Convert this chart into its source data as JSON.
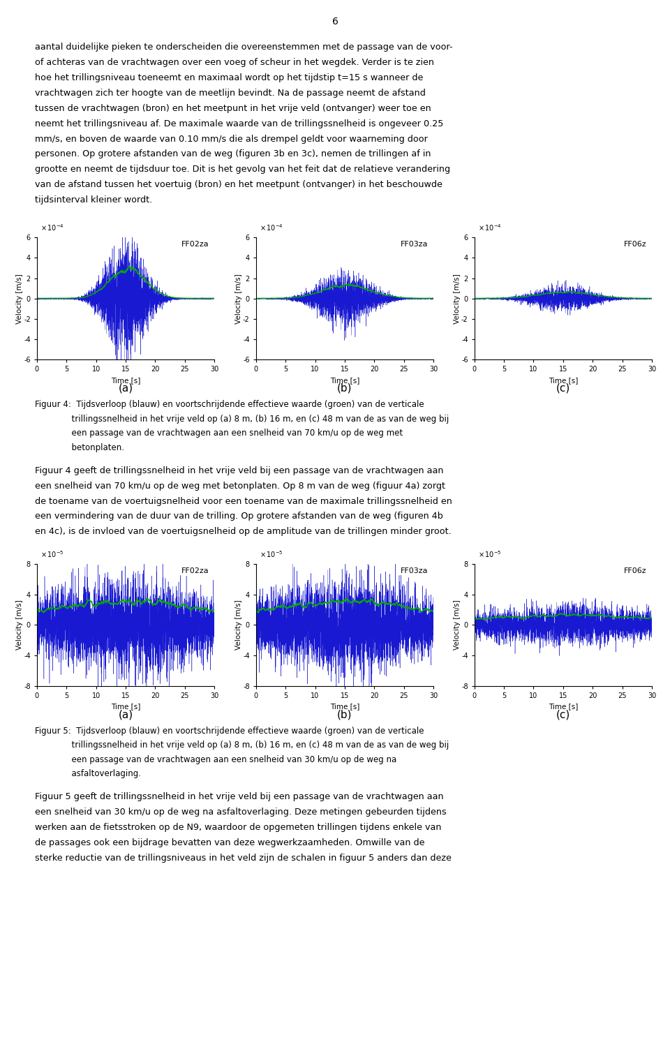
{
  "page_number": "6",
  "background_color": "#ffffff",
  "text_color": "#000000",
  "fig4_labels": [
    "FF02za",
    "FF03za",
    "FF06z"
  ],
  "fig4_sublabels": [
    "(a)",
    "(b)",
    "(c)"
  ],
  "fig5_labels": [
    "FF02za",
    "FF03za",
    "FF06z"
  ],
  "fig5_sublabels": [
    "(a)",
    "(b)",
    "(c)"
  ],
  "plot_xlim": [
    0,
    30
  ],
  "plot_ylim_fig4": [
    -0.0006,
    0.0006
  ],
  "plot_ylim_fig5": [
    -8e-05,
    8e-05
  ],
  "plot_yticks_fig4": [
    -0.0006,
    -0.0004,
    -0.0002,
    0,
    0.0002,
    0.0004,
    0.0006
  ],
  "plot_ytick_labels_fig4": [
    "-6",
    "-4",
    "-2",
    "0",
    "2",
    "4",
    "6"
  ],
  "plot_yticks_fig5": [
    -8e-05,
    -4e-05,
    0,
    4e-05,
    8e-05
  ],
  "plot_ytick_labels_fig5": [
    "-8",
    "-4",
    "0",
    "4",
    "8"
  ],
  "blue_color": "#0000cd",
  "green_color": "#00aa00",
  "para1_lines": [
    "aantal duidelijke pieken te onderscheiden die overeenstemmen met de passage van de voor-",
    "of achteras van de vrachtwagen over een voeg of scheur in het wegdek. Verder is te zien",
    "hoe het trillingsniveau toeneemt en maximaal wordt op het tijdstip t=15 s wanneer de",
    "vrachtwagen zich ter hoogte van de meetlijn bevindt. Na de passage neemt de afstand",
    "tussen de vrachtwagen (bron) en het meetpunt in het vrije veld (ontvanger) weer toe en",
    "neemt het trillingsniveau af. De maximale waarde van de trillingssnelheid is ongeveer 0.25",
    "mm/s, en boven de waarde van 0.10 mm/s die als drempel geldt voor waarneming door",
    "personen. Op grotere afstanden van de weg (figuren 3b en 3c), nemen de trillingen af in",
    "grootte en neemt de tijdsduur toe. Dit is het gevolg van het feit dat de relatieve verandering",
    "van de afstand tussen het voertuig (bron) en het meetpunt (ontvanger) in het beschouwde",
    "tijdsinterval kleiner wordt."
  ],
  "para2_lines": [
    "Figuur 4 geeft de trillingssnelheid in het vrije veld bij een passage van de vrachtwagen aan",
    "een snelheid van 70 km/u op de weg met betonplaten. Op 8 m van de weg (figuur 4a) zorgt",
    "de toename van de voertuigsnelheid voor een toename van de maximale trillingssnelheid en",
    "een vermindering van de duur van de trilling. Op grotere afstanden van de weg (figuren 4b",
    "en 4c), is de invloed van de voertuigsnelheid op de amplitude van de trillingen minder groot."
  ],
  "para3_lines": [
    "Figuur 5 geeft de trillingssnelheid in het vrije veld bij een passage van de vrachtwagen aan",
    "een snelheid van 30 km/u op de weg na asfaltoverlaging. Deze metingen gebeurden tijdens",
    "werken aan de fietsstroken op de N9, waardoor de opgemeten trillingen tijdens enkele van",
    "de passages ook een bijdrage bevatten van deze wegwerkzaamheden. Omwille van de",
    "sterke reductie van de trillingsniveaus in het veld zijn de schalen in figuur 5 anders dan deze"
  ],
  "cap4_line1": "Figuur 4:",
  "cap4_text": "Tijdsverloop (blauw) en voortschrijdende effectieve waarde (groen) van de verticale trillingssnelheid in het vrije veld op (a) 8 m, (b) 16 m, en (c) 48 m van de as van de weg bij een passage van de vrachtwagen aan een snelheid van 70 km/u op de weg met betonplaten.",
  "cap5_line1": "Figuur 5:",
  "cap5_text": "Tijdsverloop (blauw) en voortschrijdende effectieve waarde (groen) van de verticale trillingssnelheid in het vrije veld op (a) 8 m, (b) 16 m, en (c) 48 m van de as van de weg bij een passage van de vrachtwagen aan een snelheid van 30 km/u op de weg na asfaltoverlaging."
}
